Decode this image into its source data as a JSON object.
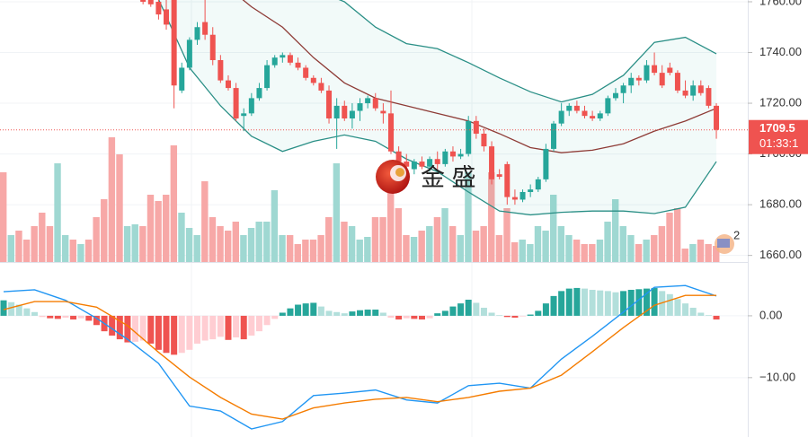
{
  "chart_data": {
    "type": "candlestick",
    "up_color": "#26a69a",
    "down_color": "#ef5350",
    "volume_up_color": "#9fd8d2",
    "volume_down_color": "#f7a8a7",
    "band_color": "#2a8f86",
    "middle_color": "#8e3b36",
    "band_fill": "#26a69a",
    "dif_color": "#2196f3",
    "dea_color": "#f57c00",
    "grid": true,
    "ylim": [
      1657.4,
      1760.7
    ],
    "yticks": [
      {
        "value": 1760,
        "label": "1760.00"
      },
      {
        "value": 1740,
        "label": "1740.00"
      },
      {
        "value": 1720,
        "label": "1720.00"
      },
      {
        "value": 1700,
        "label": "1700.00"
      },
      {
        "value": 1680,
        "label": "1680.00"
      },
      {
        "value": 1660,
        "label": "1660.00"
      }
    ],
    "open": [
      null,
      null,
      null,
      null,
      null,
      null,
      null,
      null,
      null,
      null,
      null,
      null,
      null,
      null,
      null,
      null,
      null,
      null,
      1763,
      1762,
      1760,
      1757,
      1762,
      1725,
      1734,
      1745,
      1752,
      1747,
      1737,
      1729,
      1726,
      1715,
      1716,
      1722,
      1726,
      1735,
      1738,
      1739,
      1736,
      1734,
      1730,
      1728,
      1725,
      1714,
      1719,
      1714,
      1717,
      1720,
      1722,
      1717,
      1716,
      1701,
      1697,
      1694,
      1697,
      1695,
      1698,
      1696,
      1701,
      1699,
      1700,
      1713,
      1708,
      1703,
      1692,
      1696,
      1683,
      1682,
      1685,
      1686,
      1690,
      1702,
      1712,
      1717,
      1719,
      1717,
      1715,
      1714,
      1716,
      1722,
      1724,
      1727,
      1730,
      1729,
      1735,
      1732,
      1734,
      1732,
      1725,
      1723,
      1727,
      1726,
      1719
    ],
    "high": [
      null,
      null,
      null,
      null,
      null,
      null,
      null,
      null,
      null,
      null,
      null,
      null,
      null,
      null,
      null,
      null,
      null,
      null,
      1764,
      1764,
      1763,
      1762,
      1763,
      1736,
      1746,
      1752,
      1761,
      1750,
      1739,
      1731,
      1728,
      1718,
      1724,
      1728,
      1737,
      1739,
      1740,
      1740,
      1738,
      1735,
      1731,
      1730,
      1727,
      1722,
      1721,
      1720,
      1722,
      1723,
      1724,
      1720,
      1725,
      1703,
      1700,
      1698,
      1699,
      1699,
      1701,
      1702,
      1703,
      1702,
      1715,
      1715,
      1710,
      1705,
      1694,
      1697,
      1686,
      1686,
      1688,
      1691,
      1704,
      1713,
      1720,
      1720,
      1721,
      1719,
      1717,
      1717,
      1723,
      1726,
      1728,
      1732,
      1731,
      1737,
      1740,
      1735,
      1736,
      1733,
      1729,
      1729,
      1729,
      1727,
      1720
    ],
    "low": [
      null,
      null,
      null,
      null,
      null,
      null,
      null,
      null,
      null,
      null,
      null,
      null,
      null,
      null,
      null,
      null,
      null,
      null,
      1759,
      1758,
      1753,
      1749,
      1718,
      1724,
      1733,
      1743,
      1745,
      1735,
      1728,
      1725,
      1713,
      1709,
      1715,
      1721,
      1725,
      1734,
      1736,
      1735,
      1733,
      1729,
      1727,
      1724,
      1712,
      1702,
      1713,
      1710,
      1713,
      1718,
      1717,
      1712,
      1700,
      1695,
      1694,
      1692,
      1694,
      1693,
      1694,
      1695,
      1697,
      1698,
      1699,
      1706,
      1701,
      1688,
      1690,
      1680,
      1680,
      1681,
      1683,
      1685,
      1689,
      1701,
      1711,
      1715,
      1716,
      1714,
      1713,
      1713,
      1715,
      1721,
      1720,
      1724,
      1727,
      1728,
      1731,
      1726,
      1731,
      1724,
      1722,
      1721,
      1723,
      1718,
      1706
    ],
    "close": [
      null,
      null,
      null,
      null,
      null,
      null,
      null,
      null,
      null,
      null,
      null,
      null,
      null,
      null,
      null,
      null,
      null,
      null,
      1760,
      1759,
      1755,
      1751,
      1727,
      1734,
      1745,
      1750,
      1747,
      1737,
      1729,
      1726,
      1714,
      1716,
      1722,
      1726,
      1735,
      1738,
      1739,
      1736,
      1734,
      1730,
      1728,
      1725,
      1714,
      1719,
      1714,
      1717,
      1720,
      1722,
      1718,
      1716,
      1701,
      1697,
      1695,
      1697,
      1695,
      1698,
      1696,
      1701,
      1699,
      1700,
      1713,
      1708,
      1703,
      1690,
      1691,
      1683,
      1682,
      1685,
      1686,
      1690,
      1702,
      1712,
      1717,
      1719,
      1717,
      1715,
      1714,
      1716,
      1722,
      1724,
      1727,
      1730,
      1729,
      1735,
      1732,
      1727,
      1732,
      1725,
      1723,
      1727,
      1724,
      1719,
      1709.5
    ],
    "volume": [
      100,
      30,
      35,
      25,
      40,
      55,
      40,
      110,
      30,
      25,
      20,
      25,
      50,
      70,
      139,
      120,
      40,
      42,
      40,
      75,
      68,
      75,
      130,
      55,
      38,
      30,
      90,
      50,
      40,
      35,
      45,
      30,
      38,
      45,
      45,
      80,
      30,
      30,
      20,
      25,
      25,
      30,
      50,
      110,
      45,
      40,
      25,
      28,
      50,
      50,
      110,
      60,
      30,
      28,
      35,
      40,
      50,
      60,
      40,
      30,
      100,
      35,
      40,
      100,
      30,
      60,
      22,
      25,
      20,
      40,
      35,
      75,
      40,
      30,
      25,
      20,
      20,
      25,
      45,
      70,
      40,
      30,
      20,
      25,
      30,
      40,
      55,
      60,
      15,
      20,
      25,
      20,
      18
    ],
    "volume_up": [
      false,
      true,
      false,
      false,
      false,
      false,
      false,
      true,
      true,
      false,
      true,
      false,
      false,
      false,
      false,
      false,
      true,
      true,
      null,
      null,
      null,
      null,
      null,
      null,
      null,
      null,
      null,
      null,
      null,
      null,
      null,
      null,
      null,
      null,
      null,
      null,
      null,
      null,
      null,
      null,
      null,
      null,
      null,
      null,
      null,
      null,
      null,
      null,
      null,
      null,
      null,
      null,
      null,
      null,
      null,
      null,
      null,
      null,
      null,
      null,
      null,
      null,
      null,
      null,
      null,
      null,
      null,
      null,
      null,
      null,
      null,
      null,
      null,
      null,
      null,
      null,
      null,
      null,
      null,
      null,
      null,
      null,
      null,
      null,
      null,
      null,
      null,
      null,
      null,
      null,
      null,
      null,
      null
    ],
    "bands": {
      "x": [
        20,
        24,
        28,
        32,
        36,
        40,
        44,
        48,
        52,
        56,
        60,
        64,
        68,
        72,
        76,
        80,
        84,
        88,
        92
      ],
      "upper": [
        1800,
        1798,
        1790,
        1780,
        1772,
        1765,
        1760,
        1750,
        1743.5,
        1741.5,
        1736,
        1730,
        1724.5,
        1720.5,
        1723.5,
        1731,
        1744,
        1746,
        1739.5
      ],
      "middle": [
        1785,
        1778,
        1768,
        1758,
        1750,
        1738,
        1728,
        1722,
        1719,
        1716,
        1713,
        1708,
        1702.5,
        1700.5,
        1701.5,
        1704,
        1709,
        1713,
        1718
      ],
      "lower": [
        1761,
        1734,
        1719,
        1707,
        1701,
        1705,
        1707.5,
        1705,
        1698,
        1693,
        1685,
        1677.5,
        1676,
        1677,
        1677.5,
        1677.5,
        1676.5,
        1679,
        1697
      ]
    },
    "price_tag": "1709.5",
    "countdown": "01:33:1",
    "watermark": "金 盛",
    "badge": "2",
    "macd": {
      "ylim": [
        -19.6,
        8.55
      ],
      "yticks": [
        {
          "value": 0,
          "label": "0.00"
        },
        {
          "value": -10,
          "label": "−10.00"
        }
      ],
      "histogram": [
        2.5,
        2.2,
        1.8,
        1.2,
        0.6,
        -0.2,
        -0.4,
        -0.5,
        -0.3,
        -0.6,
        -0.4,
        -0.8,
        -1.5,
        -2.5,
        -3.2,
        -3.8,
        -4.3,
        -4.2,
        -4.0,
        -4.5,
        -5.5,
        -6.0,
        -6.3,
        -6.0,
        -5.5,
        -4.5,
        -4.0,
        -3.8,
        -3.4,
        -3.9,
        -3.5,
        -3.8,
        -3.2,
        -2.5,
        -1.5,
        -0.5,
        0.5,
        1.2,
        1.8,
        2.0,
        2.1,
        1.5,
        0.8,
        0.6,
        0.4,
        0.7,
        0.9,
        1.0,
        1.0,
        0.5,
        -0.3,
        -0.6,
        -0.4,
        -0.5,
        -0.6,
        -0.4,
        0.4,
        0.8,
        1.5,
        2.0,
        2.6,
        2.1,
        1.3,
        0.5,
        0.1,
        -0.2,
        -0.3,
        -0.1,
        0.2,
        0.8,
        2.0,
        3.2,
        4.0,
        4.4,
        4.5,
        4.4,
        4.2,
        4.1,
        4.0,
        3.8,
        4.0,
        4.2,
        4.3,
        4.4,
        4.5,
        4.0,
        3.5,
        2.7,
        2.0,
        1.3,
        0.5,
        0.1,
        -0.6
      ],
      "x": [
        0,
        4,
        8,
        12,
        16,
        20,
        24,
        28,
        32,
        36,
        40,
        44,
        48,
        52,
        56,
        60,
        64,
        68,
        72,
        76,
        80,
        84,
        88,
        92
      ],
      "dif": [
        3.9,
        4.2,
        2.5,
        -0.4,
        -3.8,
        -7.7,
        -14.6,
        -15.4,
        -18.3,
        -17.1,
        -12.9,
        -12.5,
        -12.0,
        -13.6,
        -14.1,
        -11.3,
        -10.9,
        -11.7,
        -7.0,
        -3.3,
        0.6,
        4.6,
        4.9,
        3.2
      ],
      "dea": [
        1.0,
        2.3,
        2.3,
        1.4,
        -1.6,
        -5.9,
        -9.9,
        -13.2,
        -15.9,
        -16.7,
        -14.9,
        -14.1,
        -13.5,
        -13.2,
        -13.9,
        -13.2,
        -12.2,
        -11.7,
        -9.6,
        -5.8,
        -1.9,
        1.7,
        3.3,
        3.3
      ]
    }
  }
}
